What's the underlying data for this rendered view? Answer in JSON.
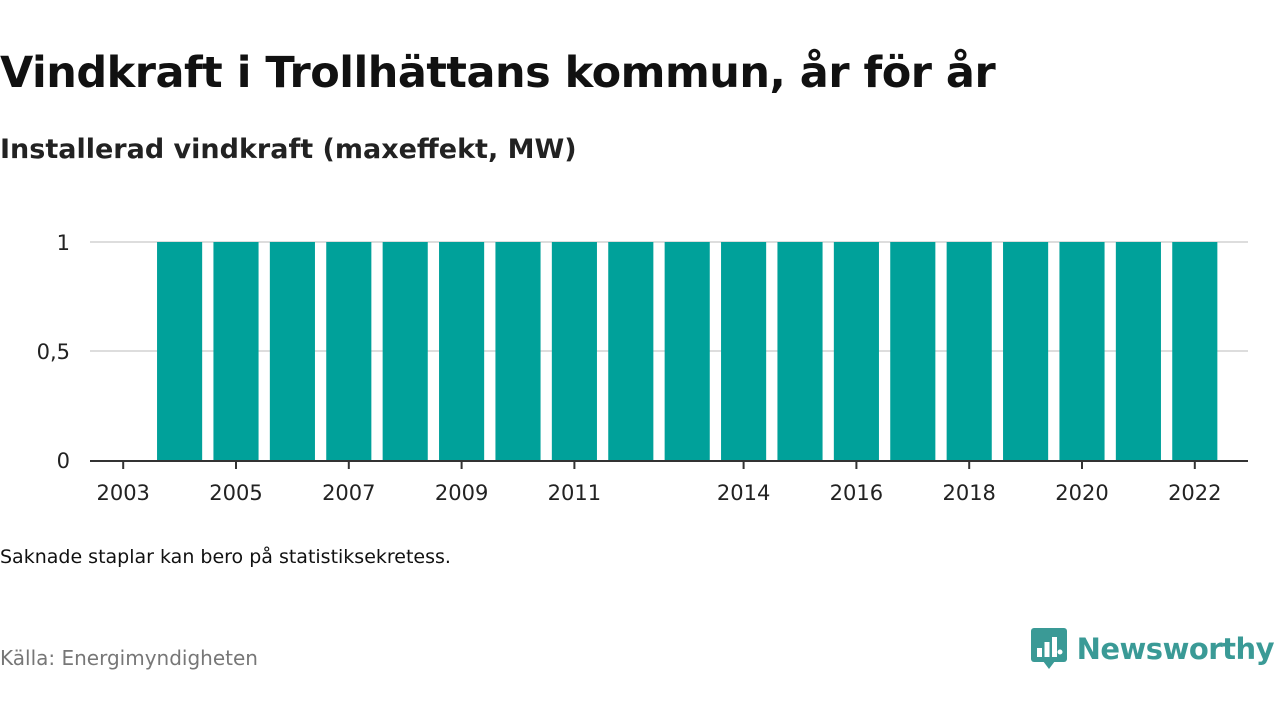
{
  "header": {
    "title": "Vindkraft i Trollhättans kommun, år för år",
    "subtitle": "Installerad vindkraft (maxeffekt, MW)"
  },
  "footer": {
    "note": "Saknade staplar kan bero på statistiksekretess.",
    "source": "Källa: Energimyndigheten",
    "brand": "Newsworthy"
  },
  "colors": {
    "bar": "#00a19a",
    "grid": "#dddddd",
    "axis": "#333333",
    "brand": "#3a9a96"
  },
  "icons": {
    "logo": "bar-chart-speech-bubble-icon"
  },
  "chart_data": {
    "type": "bar",
    "categories": [
      "2003",
      "2004",
      "2005",
      "2006",
      "2007",
      "2008",
      "2009",
      "2010",
      "2011",
      "2012",
      "2013",
      "2014",
      "2015",
      "2016",
      "2017",
      "2018",
      "2019",
      "2020",
      "2021",
      "2022"
    ],
    "values": [
      null,
      1,
      1,
      1,
      1,
      1,
      1,
      1,
      1,
      1,
      1,
      1,
      1,
      1,
      1,
      1,
      1,
      1,
      1,
      1
    ],
    "x_tick_labels": [
      "2003",
      "2005",
      "2007",
      "2009",
      "2011",
      "2014",
      "2016",
      "2018",
      "2020",
      "2022"
    ],
    "y_ticks": [
      0,
      0.5,
      1
    ],
    "y_tick_labels": [
      "0",
      "0,5",
      "1"
    ],
    "ylim": [
      0,
      1
    ],
    "grid": true,
    "legend": "none"
  }
}
